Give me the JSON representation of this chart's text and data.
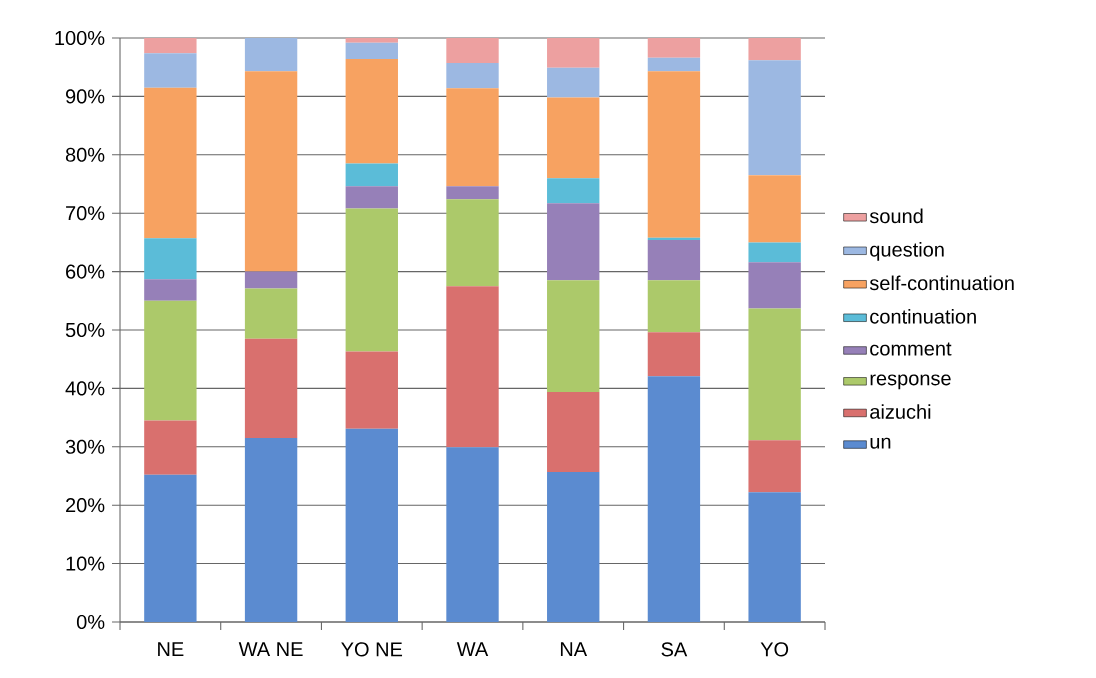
{
  "chart_data": {
    "type": "bar",
    "stacked": true,
    "categories": [
      "NE",
      "WA NE",
      "YO NE",
      "WA",
      "NA",
      "SA",
      "YO"
    ],
    "series": [
      {
        "name": "un",
        "color": "#5b8bd0",
        "values": [
          25.2,
          31.5,
          33.1,
          29.9,
          25.7,
          42.1,
          22.2
        ]
      },
      {
        "name": "aizuchi",
        "color": "#d9706e",
        "values": [
          9.3,
          17.0,
          13.2,
          27.6,
          13.7,
          7.5,
          8.9
        ]
      },
      {
        "name": "response",
        "color": "#acc96a",
        "values": [
          20.5,
          8.6,
          24.5,
          14.9,
          19.1,
          8.9,
          22.6
        ]
      },
      {
        "name": "comment",
        "color": "#9680b8",
        "values": [
          3.7,
          2.9,
          3.8,
          2.2,
          13.2,
          6.9,
          7.9
        ]
      },
      {
        "name": "continuation",
        "color": "#5bbcd8",
        "values": [
          7.0,
          0,
          3.9,
          0,
          4.3,
          0.4,
          3.4
        ]
      },
      {
        "name": "self-continuation",
        "color": "#f7a261",
        "values": [
          25.8,
          34.3,
          17.9,
          16.8,
          13.8,
          28.5,
          11.5
        ]
      },
      {
        "name": "question",
        "color": "#9cb8e2",
        "values": [
          5.9,
          5.7,
          2.8,
          4.3,
          5.1,
          2.3,
          19.7
        ]
      },
      {
        "name": "sound",
        "color": "#eda0a0",
        "values": [
          2.6,
          0,
          0.8,
          4.3,
          5.1,
          3.4,
          3.8
        ]
      }
    ],
    "ylim": [
      0,
      100
    ],
    "yticks": [
      {
        "value": 0,
        "label": "0%"
      },
      {
        "value": 10,
        "label": "10%"
      },
      {
        "value": 20,
        "label": "20%"
      },
      {
        "value": 30,
        "label": "30%"
      },
      {
        "value": 40,
        "label": "40%"
      },
      {
        "value": 50,
        "label": "50%"
      },
      {
        "value": 60,
        "label": "60%"
      },
      {
        "value": 70,
        "label": "70%"
      },
      {
        "value": 80,
        "label": "80%"
      },
      {
        "value": 90,
        "label": "90%"
      },
      {
        "value": 100,
        "label": "100%"
      }
    ],
    "grid": "y",
    "legend": "right"
  }
}
